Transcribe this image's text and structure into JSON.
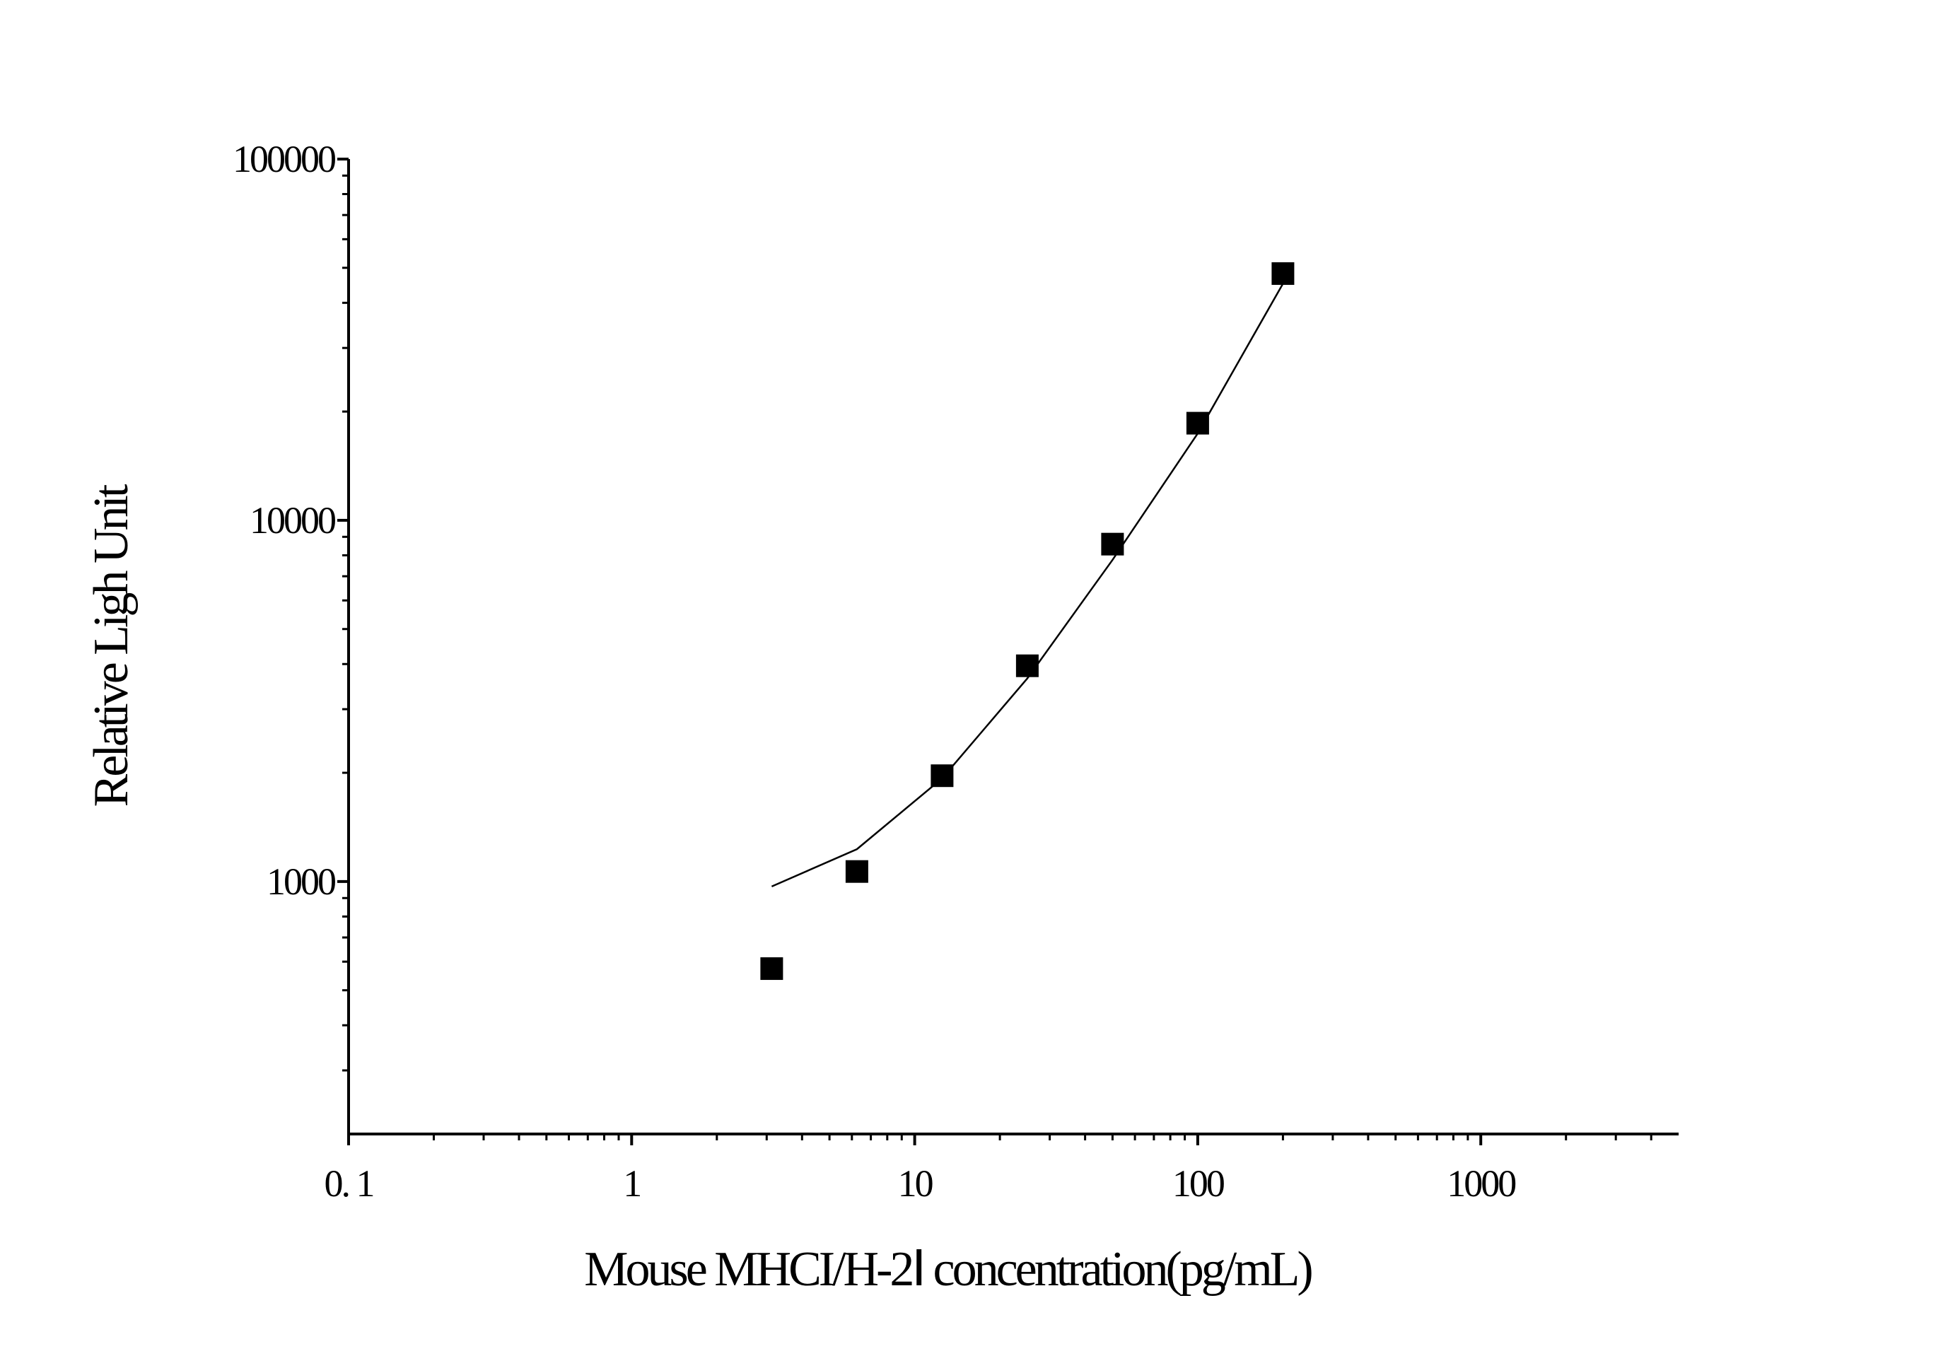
{
  "chart_data": {
    "type": "scatter",
    "x_label": "Mouse MHCI/H-2Ⅰ concentration(pg/mL)",
    "y_label": "Relative Ligh Unit",
    "x": [
      3.125,
      6.25,
      12.5,
      25,
      50,
      100,
      200
    ],
    "series": [
      {
        "style": "markers",
        "color": "#000000",
        "values": [
          574,
          1066,
          1963,
          3956,
          8590,
          18570,
          48200
        ]
      },
      {
        "style": "line",
        "color": "#000000",
        "values": [
          969,
          1229,
          1930,
          3650,
          7770,
          17400,
          45200
        ]
      }
    ],
    "xlim": [
      0.1,
      5000
    ],
    "ylim": [
      200,
      100000
    ],
    "xticks": [
      {
        "value": 0.1,
        "label": "0. 1"
      },
      1,
      10,
      100,
      1000
    ],
    "yticks": [
      1000,
      10000,
      100000
    ],
    "xscale": "log",
    "yscale": "log",
    "minor_ticks": true,
    "grid": false
  }
}
